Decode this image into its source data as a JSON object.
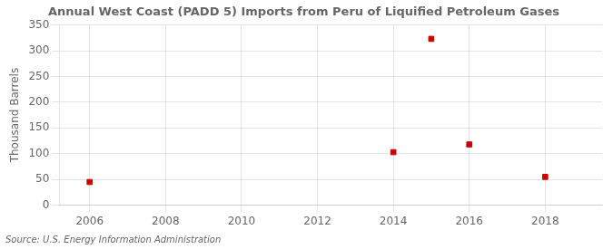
{
  "chart_data": {
    "type": "scatter",
    "title": "Annual West Coast (PADD 5) Imports from Peru of Liquified Petroleum Gases",
    "ylabel": "Thousand Barrels",
    "annotation": "Source: U.S. Energy Information Administration",
    "x": [
      2006,
      2014,
      2015,
      2016,
      2018
    ],
    "values": [
      45,
      103,
      323,
      118,
      55
    ],
    "color": "#cc0000",
    "marker": "square",
    "xlim": [
      2005.2,
      2019.5
    ],
    "ylim": [
      0,
      350
    ],
    "xticks": [
      2006,
      2008,
      2010,
      2012,
      2014,
      2016,
      2018
    ],
    "yticks": [
      0,
      50,
      100,
      150,
      200,
      250,
      300,
      350
    ],
    "grid": true
  }
}
